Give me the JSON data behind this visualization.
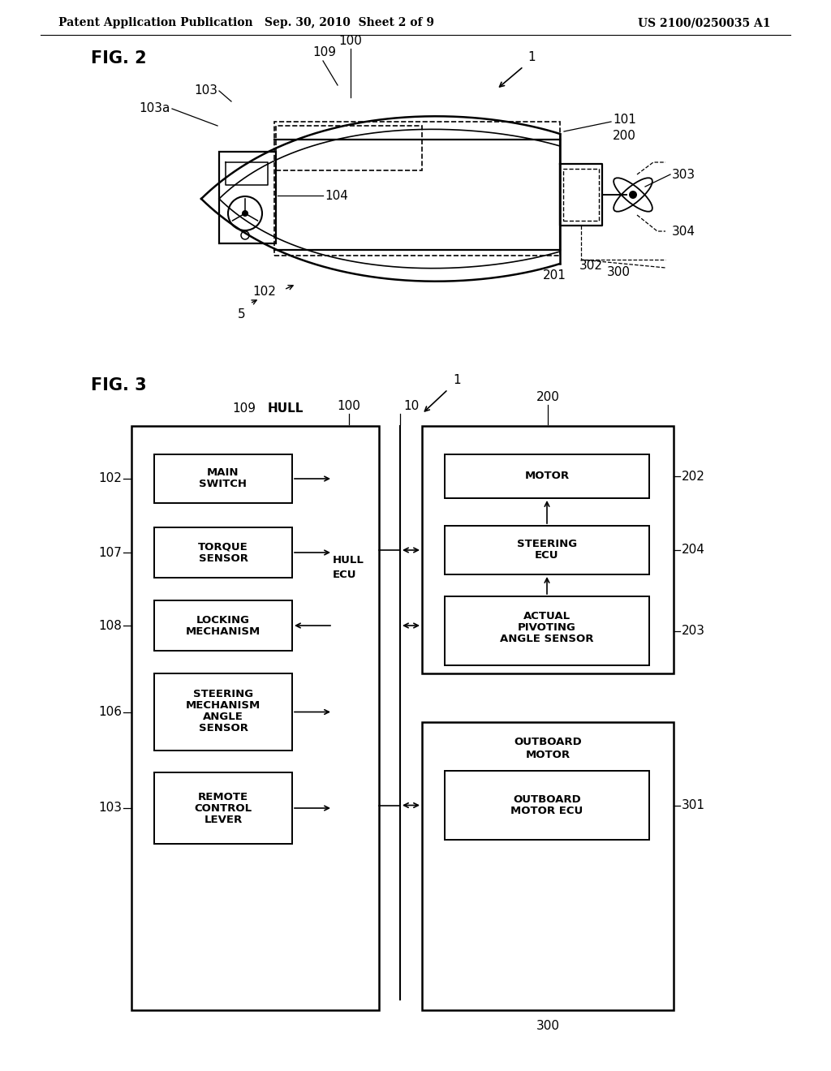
{
  "bg_color": "#ffffff",
  "header_left": "Patent Application Publication",
  "header_mid": "Sep. 30, 2010  Sheet 2 of 9",
  "header_right": "US 2100/0250035 A1",
  "line_color": "#000000"
}
